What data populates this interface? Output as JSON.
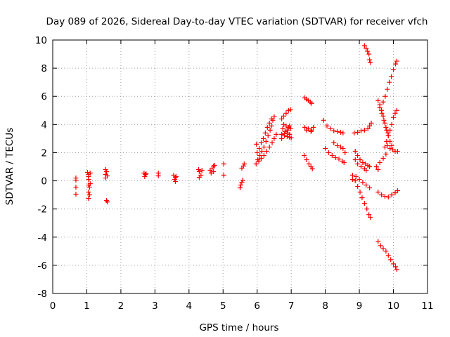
{
  "chart_data": {
    "type": "scatter",
    "title": "Day 089 of 2026, Sidereal Day-to-day VTEC variation (SDTVAR) for receiver vfch",
    "xlabel": "GPS time / hours",
    "ylabel": "SDTVAR / TECUs",
    "xlim": [
      0,
      11
    ],
    "ylim": [
      -8,
      10
    ],
    "x_ticks": [
      0,
      1,
      2,
      3,
      4,
      5,
      6,
      7,
      8,
      9,
      10,
      11
    ],
    "y_ticks": [
      -8,
      -6,
      -4,
      -2,
      0,
      2,
      4,
      6,
      8,
      10
    ],
    "grid": true,
    "marker": "+",
    "color": "#ff0000",
    "series": [
      {
        "name": "SDTVAR",
        "points": [
          [
            0.68,
            0.2
          ],
          [
            0.68,
            0.05
          ],
          [
            0.68,
            -0.45
          ],
          [
            0.68,
            -0.95
          ],
          [
            1.02,
            0.6
          ],
          [
            1.05,
            0.45
          ],
          [
            1.05,
            0.3
          ],
          [
            1.05,
            0.1
          ],
          [
            1.05,
            -0.3
          ],
          [
            1.08,
            -0.45
          ],
          [
            1.05,
            -0.8
          ],
          [
            1.08,
            -1.0
          ],
          [
            1.05,
            -1.25
          ],
          [
            1.1,
            0.55
          ],
          [
            1.1,
            -0.2
          ],
          [
            1.55,
            0.8
          ],
          [
            1.58,
            0.65
          ],
          [
            1.55,
            0.45
          ],
          [
            1.6,
            0.35
          ],
          [
            1.55,
            0.2
          ],
          [
            1.58,
            -1.4
          ],
          [
            1.6,
            -1.5
          ],
          [
            2.68,
            0.55
          ],
          [
            2.72,
            0.45
          ],
          [
            2.7,
            0.3
          ],
          [
            2.74,
            0.5
          ],
          [
            3.1,
            0.55
          ],
          [
            3.1,
            0.35
          ],
          [
            3.55,
            0.4
          ],
          [
            3.6,
            0.25
          ],
          [
            3.58,
            0.1
          ],
          [
            3.6,
            -0.05
          ],
          [
            3.62,
            0.3
          ],
          [
            4.28,
            0.8
          ],
          [
            4.3,
            0.65
          ],
          [
            4.35,
            0.4
          ],
          [
            4.3,
            0.25
          ],
          [
            4.38,
            0.75
          ],
          [
            4.62,
            0.75
          ],
          [
            4.68,
            0.9
          ],
          [
            4.72,
            1.05
          ],
          [
            4.75,
            1.1
          ],
          [
            4.65,
            0.55
          ],
          [
            4.72,
            0.65
          ],
          [
            5.02,
            1.2
          ],
          [
            5.02,
            0.4
          ],
          [
            5.5,
            -0.5
          ],
          [
            5.52,
            -0.3
          ],
          [
            5.55,
            -0.1
          ],
          [
            5.58,
            0.05
          ],
          [
            5.55,
            0.9
          ],
          [
            5.6,
            1.05
          ],
          [
            5.62,
            1.2
          ],
          [
            5.97,
            1.2
          ],
          [
            6.02,
            1.5
          ],
          [
            6.08,
            1.8
          ],
          [
            6.14,
            2.1
          ],
          [
            6.2,
            2.4
          ],
          [
            6.26,
            2.8
          ],
          [
            6.32,
            3.2
          ],
          [
            6.38,
            3.6
          ],
          [
            6.42,
            3.9
          ],
          [
            6.46,
            4.3
          ],
          [
            6.5,
            4.55
          ],
          [
            6.0,
            2.0
          ],
          [
            6.06,
            2.3
          ],
          [
            6.12,
            2.7
          ],
          [
            6.18,
            3.0
          ],
          [
            6.24,
            3.4
          ],
          [
            6.3,
            3.8
          ],
          [
            6.36,
            4.1
          ],
          [
            6.42,
            4.4
          ],
          [
            5.98,
            2.6
          ],
          [
            6.05,
            1.4
          ],
          [
            6.12,
            1.6
          ],
          [
            6.2,
            1.8
          ],
          [
            6.28,
            2.1
          ],
          [
            6.36,
            2.4
          ],
          [
            6.44,
            2.7
          ],
          [
            6.5,
            3.0
          ],
          [
            6.56,
            3.3
          ],
          [
            6.72,
            4.4
          ],
          [
            6.78,
            4.6
          ],
          [
            6.85,
            4.8
          ],
          [
            6.92,
            5.0
          ],
          [
            6.98,
            5.05
          ],
          [
            6.72,
            3.3
          ],
          [
            6.8,
            3.2
          ],
          [
            6.88,
            3.15
          ],
          [
            6.95,
            3.1
          ],
          [
            7.0,
            3.05
          ],
          [
            6.75,
            3.7
          ],
          [
            6.82,
            3.5
          ],
          [
            6.9,
            3.4
          ],
          [
            6.95,
            3.3
          ],
          [
            6.78,
            4.0
          ],
          [
            6.85,
            3.9
          ],
          [
            6.92,
            3.8
          ],
          [
            6.98,
            3.7
          ],
          [
            6.72,
            3.0
          ],
          [
            6.8,
            3.35
          ],
          [
            6.88,
            3.6
          ],
          [
            6.95,
            3.9
          ],
          [
            7.4,
            5.9
          ],
          [
            7.45,
            5.8
          ],
          [
            7.5,
            5.7
          ],
          [
            7.56,
            5.6
          ],
          [
            7.6,
            5.5
          ],
          [
            7.4,
            3.8
          ],
          [
            7.5,
            3.7
          ],
          [
            7.6,
            3.6
          ],
          [
            7.65,
            3.8
          ],
          [
            7.58,
            3.5
          ],
          [
            7.45,
            3.6
          ],
          [
            7.38,
            1.8
          ],
          [
            7.45,
            1.5
          ],
          [
            7.52,
            1.2
          ],
          [
            7.58,
            1.0
          ],
          [
            7.62,
            0.85
          ],
          [
            7.95,
            4.3
          ],
          [
            8.05,
            3.9
          ],
          [
            8.15,
            3.7
          ],
          [
            8.25,
            3.55
          ],
          [
            8.35,
            3.5
          ],
          [
            8.45,
            3.45
          ],
          [
            8.52,
            3.4
          ],
          [
            8.0,
            2.3
          ],
          [
            8.1,
            2.0
          ],
          [
            8.2,
            1.8
          ],
          [
            8.3,
            1.65
          ],
          [
            8.4,
            1.55
          ],
          [
            8.5,
            1.4
          ],
          [
            8.55,
            1.3
          ],
          [
            8.25,
            2.7
          ],
          [
            8.35,
            2.5
          ],
          [
            8.45,
            2.4
          ],
          [
            8.52,
            2.3
          ],
          [
            8.58,
            2.0
          ],
          [
            8.85,
            3.4
          ],
          [
            8.95,
            3.45
          ],
          [
            9.05,
            3.55
          ],
          [
            9.15,
            3.6
          ],
          [
            9.25,
            3.7
          ],
          [
            9.3,
            3.9
          ],
          [
            9.35,
            4.1
          ],
          [
            8.88,
            2.1
          ],
          [
            8.95,
            1.8
          ],
          [
            9.02,
            1.5
          ],
          [
            9.1,
            1.3
          ],
          [
            9.18,
            1.2
          ],
          [
            9.25,
            1.1
          ],
          [
            9.3,
            1.0
          ],
          [
            8.88,
            1.5
          ],
          [
            8.95,
            1.2
          ],
          [
            9.05,
            1.0
          ],
          [
            9.15,
            0.85
          ],
          [
            9.2,
            0.75
          ],
          [
            8.8,
            0.4
          ],
          [
            8.88,
            0.0
          ],
          [
            8.95,
            -0.4
          ],
          [
            9.02,
            -0.8
          ],
          [
            9.08,
            -1.2
          ],
          [
            9.15,
            -1.6
          ],
          [
            9.22,
            -2.0
          ],
          [
            9.28,
            -2.4
          ],
          [
            9.32,
            -2.6
          ],
          [
            8.8,
            0.1
          ],
          [
            8.9,
            0.3
          ],
          [
            9.0,
            0.1
          ],
          [
            9.1,
            -0.1
          ],
          [
            9.2,
            -0.3
          ],
          [
            9.3,
            -0.5
          ],
          [
            9.15,
            9.6
          ],
          [
            9.2,
            9.4
          ],
          [
            9.24,
            9.2
          ],
          [
            9.28,
            9.0
          ],
          [
            9.3,
            8.6
          ],
          [
            9.32,
            8.4
          ],
          [
            9.55,
            5.7
          ],
          [
            9.6,
            5.4
          ],
          [
            9.65,
            5.0
          ],
          [
            9.7,
            4.6
          ],
          [
            9.75,
            4.1
          ],
          [
            9.8,
            3.6
          ],
          [
            9.85,
            3.2
          ],
          [
            9.9,
            2.8
          ],
          [
            9.95,
            2.5
          ],
          [
            9.6,
            5.2
          ],
          [
            9.66,
            4.8
          ],
          [
            9.72,
            4.3
          ],
          [
            9.78,
            3.8
          ],
          [
            9.84,
            3.4
          ],
          [
            9.7,
            5.6
          ],
          [
            9.76,
            6.0
          ],
          [
            9.82,
            6.5
          ],
          [
            9.88,
            7.0
          ],
          [
            9.94,
            7.4
          ],
          [
            10.0,
            7.9
          ],
          [
            10.06,
            8.3
          ],
          [
            10.1,
            8.5
          ],
          [
            9.75,
            2.4
          ],
          [
            9.8,
            2.8
          ],
          [
            9.85,
            3.2
          ],
          [
            9.9,
            3.6
          ],
          [
            9.95,
            4.0
          ],
          [
            10.0,
            4.5
          ],
          [
            10.05,
            4.8
          ],
          [
            10.1,
            5.0
          ],
          [
            9.82,
            2.5
          ],
          [
            9.9,
            2.3
          ],
          [
            9.98,
            2.2
          ],
          [
            10.05,
            2.1
          ],
          [
            10.12,
            2.1
          ],
          [
            9.5,
            1.0
          ],
          [
            9.6,
            1.3
          ],
          [
            9.7,
            1.6
          ],
          [
            9.78,
            1.9
          ],
          [
            9.55,
            0.8
          ],
          [
            9.55,
            -0.8
          ],
          [
            9.65,
            -1.0
          ],
          [
            9.75,
            -1.1
          ],
          [
            9.85,
            -1.15
          ],
          [
            9.95,
            -1.0
          ],
          [
            10.05,
            -0.85
          ],
          [
            10.12,
            -0.7
          ],
          [
            9.55,
            -4.3
          ],
          [
            9.62,
            -4.6
          ],
          [
            9.7,
            -4.8
          ],
          [
            9.78,
            -5.0
          ],
          [
            9.85,
            -5.3
          ],
          [
            9.92,
            -5.6
          ],
          [
            10.0,
            -5.9
          ],
          [
            10.06,
            -6.1
          ],
          [
            10.1,
            -6.3
          ]
        ]
      }
    ]
  }
}
